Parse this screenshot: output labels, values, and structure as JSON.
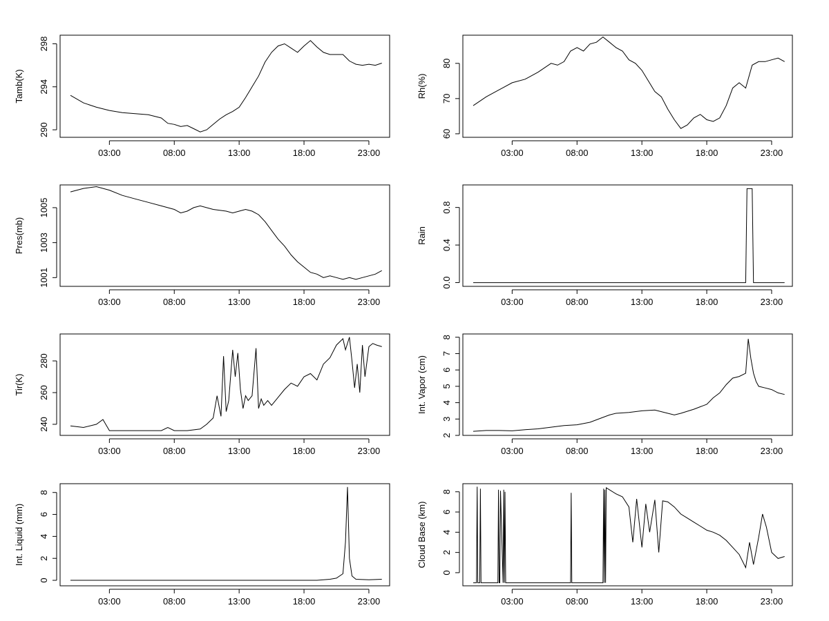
{
  "chart_data": [
    {
      "type": "line",
      "ylabel": "Tamb(K)",
      "xticks": [
        "03:00",
        "08:00",
        "13:00",
        "18:00",
        "23:00"
      ],
      "xrange": [
        -0.8,
        24.6
      ],
      "ylim": [
        289.3,
        298.8
      ],
      "yticks": [
        290,
        294,
        298
      ],
      "ylog": false,
      "grid": false,
      "x": [
        0.0,
        1.0,
        2.0,
        3.0,
        4.0,
        5.0,
        6.0,
        7.0,
        7.5,
        8.0,
        8.5,
        9.0,
        9.5,
        10.0,
        10.5,
        11.0,
        11.5,
        12.0,
        12.5,
        13.0,
        13.5,
        14.0,
        14.5,
        15.0,
        15.5,
        16.0,
        16.5,
        17.0,
        17.5,
        18.0,
        18.5,
        19.0,
        19.5,
        20.0,
        20.5,
        21.0,
        21.5,
        22.0,
        22.5,
        23.0,
        23.5,
        24.0
      ],
      "y": [
        293.2,
        292.5,
        292.1,
        291.8,
        291.6,
        291.5,
        291.4,
        291.1,
        290.6,
        290.5,
        290.3,
        290.4,
        290.1,
        289.8,
        290.0,
        290.5,
        291.0,
        291.4,
        291.7,
        292.1,
        293.0,
        294.0,
        295.0,
        296.3,
        297.2,
        297.8,
        298.0,
        297.6,
        297.2,
        297.8,
        298.3,
        297.7,
        297.2,
        297.0,
        297.0,
        297.0,
        296.4,
        296.1,
        296.0,
        296.1,
        296.0,
        296.2
      ]
    },
    {
      "type": "line",
      "ylabel": "Rh(%)",
      "xticks": [
        "03:00",
        "08:00",
        "13:00",
        "18:00",
        "23:00"
      ],
      "xrange": [
        -0.8,
        24.6
      ],
      "ylim": [
        59.0,
        88.0
      ],
      "yticks": [
        60,
        70,
        80
      ],
      "ylog": false,
      "grid": false,
      "x": [
        0.0,
        1.0,
        2.0,
        3.0,
        4.0,
        5.0,
        6.0,
        6.5,
        7.0,
        7.5,
        8.0,
        8.5,
        9.0,
        9.5,
        10.0,
        10.5,
        11.0,
        11.5,
        12.0,
        12.5,
        13.0,
        13.5,
        14.0,
        14.5,
        15.0,
        15.5,
        16.0,
        16.5,
        17.0,
        17.5,
        18.0,
        18.5,
        19.0,
        19.5,
        20.0,
        20.5,
        21.0,
        21.5,
        22.0,
        22.5,
        23.0,
        23.5,
        24.0
      ],
      "y": [
        68.0,
        70.5,
        72.5,
        74.5,
        75.5,
        77.5,
        80.0,
        79.5,
        80.5,
        83.5,
        84.5,
        83.5,
        85.5,
        86.0,
        87.5,
        86.0,
        84.5,
        83.5,
        81.0,
        80.0,
        78.0,
        75.0,
        72.0,
        70.5,
        67.0,
        64.0,
        61.5,
        62.5,
        64.5,
        65.5,
        64.0,
        63.5,
        64.5,
        68.0,
        73.0,
        74.5,
        73.0,
        79.5,
        80.5,
        80.5,
        81.0,
        81.5,
        80.5
      ]
    },
    {
      "type": "line",
      "ylabel": "Pres(mb)",
      "xticks": [
        "03:00",
        "08:00",
        "13:00",
        "18:00",
        "23:00"
      ],
      "xrange": [
        -0.8,
        24.6
      ],
      "ylim": [
        1000.5,
        1006.3
      ],
      "yticks": [
        1001,
        1003,
        1005
      ],
      "ylog": false,
      "grid": false,
      "x": [
        0.0,
        1.0,
        2.0,
        3.0,
        4.0,
        5.0,
        6.0,
        7.0,
        8.0,
        8.5,
        9.0,
        9.5,
        10.0,
        11.0,
        12.0,
        12.5,
        13.0,
        13.5,
        14.0,
        14.5,
        15.0,
        15.5,
        16.0,
        16.5,
        17.0,
        17.5,
        18.0,
        18.5,
        19.0,
        19.5,
        20.0,
        20.5,
        21.0,
        21.5,
        22.0,
        22.5,
        23.0,
        23.5,
        24.0
      ],
      "y": [
        1005.9,
        1006.1,
        1006.2,
        1006.0,
        1005.7,
        1005.5,
        1005.3,
        1005.1,
        1004.9,
        1004.7,
        1004.8,
        1005.0,
        1005.1,
        1004.9,
        1004.8,
        1004.7,
        1004.8,
        1004.9,
        1004.8,
        1004.6,
        1004.2,
        1003.7,
        1003.2,
        1002.8,
        1002.3,
        1001.9,
        1001.6,
        1001.3,
        1001.2,
        1001.0,
        1001.1,
        1001.0,
        1000.9,
        1001.0,
        1000.9,
        1001.0,
        1001.1,
        1001.2,
        1001.4
      ]
    },
    {
      "type": "line",
      "ylabel": "Rain",
      "xticks": [
        "03:00",
        "08:00",
        "13:00",
        "18:00",
        "23:00"
      ],
      "xrange": [
        -0.8,
        24.6
      ],
      "ylim": [
        -0.04,
        1.04
      ],
      "yticks": [
        "0.0",
        "0.4",
        "0.8"
      ],
      "ylog": false,
      "grid": false,
      "x": [
        0.0,
        21.0,
        21.1,
        21.5,
        21.6,
        24.0
      ],
      "y": [
        0.0,
        0.0,
        1.0,
        1.0,
        0.0,
        0.0
      ]
    },
    {
      "type": "line",
      "ylabel": "Tir(K)",
      "xticks": [
        "03:00",
        "08:00",
        "13:00",
        "18:00",
        "23:00"
      ],
      "xrange": [
        -0.8,
        24.6
      ],
      "ylim": [
        233.0,
        297.0
      ],
      "yticks": [
        240,
        260,
        280
      ],
      "ylog": false,
      "grid": false,
      "x": [
        0.0,
        1.0,
        2.0,
        2.5,
        3.0,
        4.0,
        5.0,
        6.0,
        7.0,
        7.5,
        8.0,
        9.0,
        10.0,
        10.5,
        11.0,
        11.3,
        11.6,
        11.8,
        12.0,
        12.2,
        12.5,
        12.7,
        12.9,
        13.1,
        13.3,
        13.5,
        13.7,
        14.0,
        14.3,
        14.5,
        14.7,
        14.9,
        15.2,
        15.5,
        16.0,
        16.5,
        17.0,
        17.5,
        18.0,
        18.5,
        19.0,
        19.5,
        20.0,
        20.5,
        21.0,
        21.2,
        21.5,
        21.7,
        21.9,
        22.1,
        22.3,
        22.5,
        22.7,
        23.0,
        23.3,
        23.6,
        24.0
      ],
      "y": [
        239,
        238,
        240,
        243,
        236,
        236,
        236,
        236,
        236,
        238,
        236,
        236,
        237,
        240,
        244,
        258,
        245,
        283,
        248,
        255,
        287,
        270,
        285,
        262,
        250,
        258,
        255,
        258,
        288,
        250,
        256,
        252,
        255,
        252,
        257,
        262,
        266,
        264,
        270,
        272,
        268,
        278,
        282,
        290,
        294,
        287,
        295,
        280,
        263,
        278,
        260,
        290,
        270,
        289,
        291,
        290,
        289
      ]
    },
    {
      "type": "line",
      "ylabel": "Int. Vapor (cm)",
      "xticks": [
        "03:00",
        "08:00",
        "13:00",
        "18:00",
        "23:00"
      ],
      "xrange": [
        -0.8,
        24.6
      ],
      "ylim": [
        2.0,
        8.2
      ],
      "yticks": [
        2,
        3,
        4,
        5,
        6,
        7,
        8
      ],
      "ylog": false,
      "grid": false,
      "x": [
        0.0,
        1.0,
        2.0,
        3.0,
        4.0,
        5.0,
        6.0,
        7.0,
        8.0,
        9.0,
        10.0,
        10.5,
        11.0,
        12.0,
        13.0,
        14.0,
        15.0,
        15.5,
        16.0,
        17.0,
        17.5,
        18.0,
        18.5,
        19.0,
        19.5,
        20.0,
        20.5,
        21.0,
        21.2,
        21.4,
        21.6,
        21.8,
        22.0,
        22.5,
        23.0,
        23.5,
        24.0
      ],
      "y": [
        2.25,
        2.3,
        2.3,
        2.28,
        2.35,
        2.4,
        2.5,
        2.6,
        2.65,
        2.8,
        3.1,
        3.25,
        3.35,
        3.4,
        3.5,
        3.55,
        3.35,
        3.25,
        3.35,
        3.6,
        3.75,
        3.9,
        4.3,
        4.6,
        5.1,
        5.5,
        5.6,
        5.8,
        7.9,
        6.7,
        5.8,
        5.3,
        5.0,
        4.9,
        4.8,
        4.6,
        4.5
      ]
    },
    {
      "type": "line",
      "ylabel": "Int. Liquid (mm)",
      "xticks": [
        "03:00",
        "08:00",
        "13:00",
        "18:00",
        "23:00"
      ],
      "xrange": [
        -0.8,
        24.6
      ],
      "ylim": [
        -0.5,
        8.8
      ],
      "yticks": [
        0,
        2,
        4,
        6,
        8
      ],
      "ylog": false,
      "grid": false,
      "x": [
        0.0,
        5.0,
        10.0,
        15.0,
        19.0,
        20.0,
        20.5,
        21.0,
        21.2,
        21.35,
        21.5,
        21.7,
        22.0,
        23.0,
        24.0
      ],
      "y": [
        0.0,
        0.0,
        0.0,
        0.0,
        0.0,
        0.1,
        0.2,
        0.6,
        3.5,
        8.5,
        2.0,
        0.4,
        0.1,
        0.05,
        0.1
      ]
    },
    {
      "type": "line",
      "ylabel": "Cloud Base (km)",
      "xticks": [
        "03:00",
        "08:00",
        "13:00",
        "18:00",
        "23:00"
      ],
      "xrange": [
        -0.8,
        24.6
      ],
      "ylim": [
        -1.3,
        8.8
      ],
      "yticks": [
        0,
        2,
        4,
        6,
        8
      ],
      "ylog": false,
      "grid": false,
      "x": [
        0.0,
        0.25,
        0.3,
        0.35,
        0.5,
        0.55,
        0.6,
        0.7,
        1.9,
        1.95,
        2.0,
        2.05,
        2.1,
        2.3,
        2.35,
        2.4,
        2.45,
        2.5,
        2.6,
        7.5,
        7.55,
        7.6,
        7.65,
        10.0,
        10.05,
        10.1,
        10.15,
        10.2,
        10.25,
        10.5,
        11.0,
        11.5,
        12.0,
        12.3,
        12.6,
        13.0,
        13.3,
        13.6,
        14.0,
        14.3,
        14.6,
        15.0,
        15.5,
        16.0,
        16.5,
        17.0,
        17.5,
        18.0,
        18.5,
        19.0,
        19.5,
        20.0,
        20.5,
        21.0,
        21.3,
        21.6,
        22.0,
        22.3,
        22.6,
        23.0,
        23.5,
        24.0
      ],
      "y": [
        -1.0,
        -1.0,
        8.5,
        -1.0,
        -1.0,
        8.3,
        -1.0,
        -1.0,
        -1.0,
        8.2,
        -1.0,
        -1.0,
        8.1,
        -1.0,
        8.2,
        -1.0,
        8.0,
        -1.0,
        -1.0,
        -1.0,
        7.9,
        -1.0,
        -1.0,
        -1.0,
        8.3,
        -1.0,
        8.2,
        -1.0,
        8.4,
        8.2,
        7.8,
        7.5,
        6.5,
        3.0,
        7.3,
        2.5,
        6.8,
        4.0,
        7.2,
        2.0,
        7.1,
        7.0,
        6.5,
        5.8,
        5.4,
        5.0,
        4.6,
        4.2,
        4.0,
        3.7,
        3.2,
        2.5,
        1.8,
        0.5,
        3.0,
        0.8,
        3.5,
        5.8,
        4.5,
        2.0,
        1.4,
        1.6
      ]
    }
  ]
}
